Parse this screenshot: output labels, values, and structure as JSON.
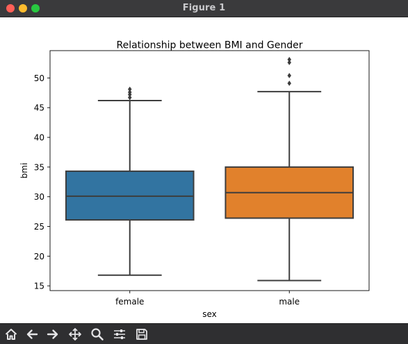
{
  "window": {
    "title": "Figure 1",
    "controls": {
      "close_color": "#ff5f57",
      "minimize_color": "#febc2e",
      "zoom_color": "#28c840"
    }
  },
  "toolbar": {
    "buttons": [
      {
        "icon": "home-icon",
        "action": "home"
      },
      {
        "icon": "arrow-left-icon",
        "action": "back"
      },
      {
        "icon": "arrow-right-icon",
        "action": "forward"
      },
      {
        "icon": "move-icon",
        "action": "pan"
      },
      {
        "icon": "magnifier-icon",
        "action": "zoom"
      },
      {
        "icon": "sliders-icon",
        "action": "configure-subplots"
      },
      {
        "icon": "floppy-disk-icon",
        "action": "save"
      }
    ]
  },
  "chart_data": {
    "type": "box",
    "title": "Relationship between BMI and Gender",
    "xlabel": "sex",
    "ylabel": "bmi",
    "ylim": [
      14.2,
      54.6
    ],
    "yticks": [
      15,
      20,
      25,
      30,
      35,
      40,
      45,
      50
    ],
    "grid": false,
    "colors": {
      "female": "#3274a1",
      "male": "#e1812c",
      "line": "#3d3d3d"
    },
    "categories": [
      "female",
      "male"
    ],
    "boxes": [
      {
        "category": "female",
        "whisker_low": 16.8,
        "q1": 26.1,
        "median": 30.1,
        "q3": 34.3,
        "whisker_high": 46.2,
        "outliers": [
          46.7,
          47.2,
          47.6,
          48.1
        ]
      },
      {
        "category": "male",
        "whisker_low": 15.9,
        "q1": 26.4,
        "median": 30.7,
        "q3": 35.0,
        "whisker_high": 47.7,
        "outliers": [
          49.1,
          50.4,
          52.6,
          53.1
        ]
      }
    ]
  }
}
